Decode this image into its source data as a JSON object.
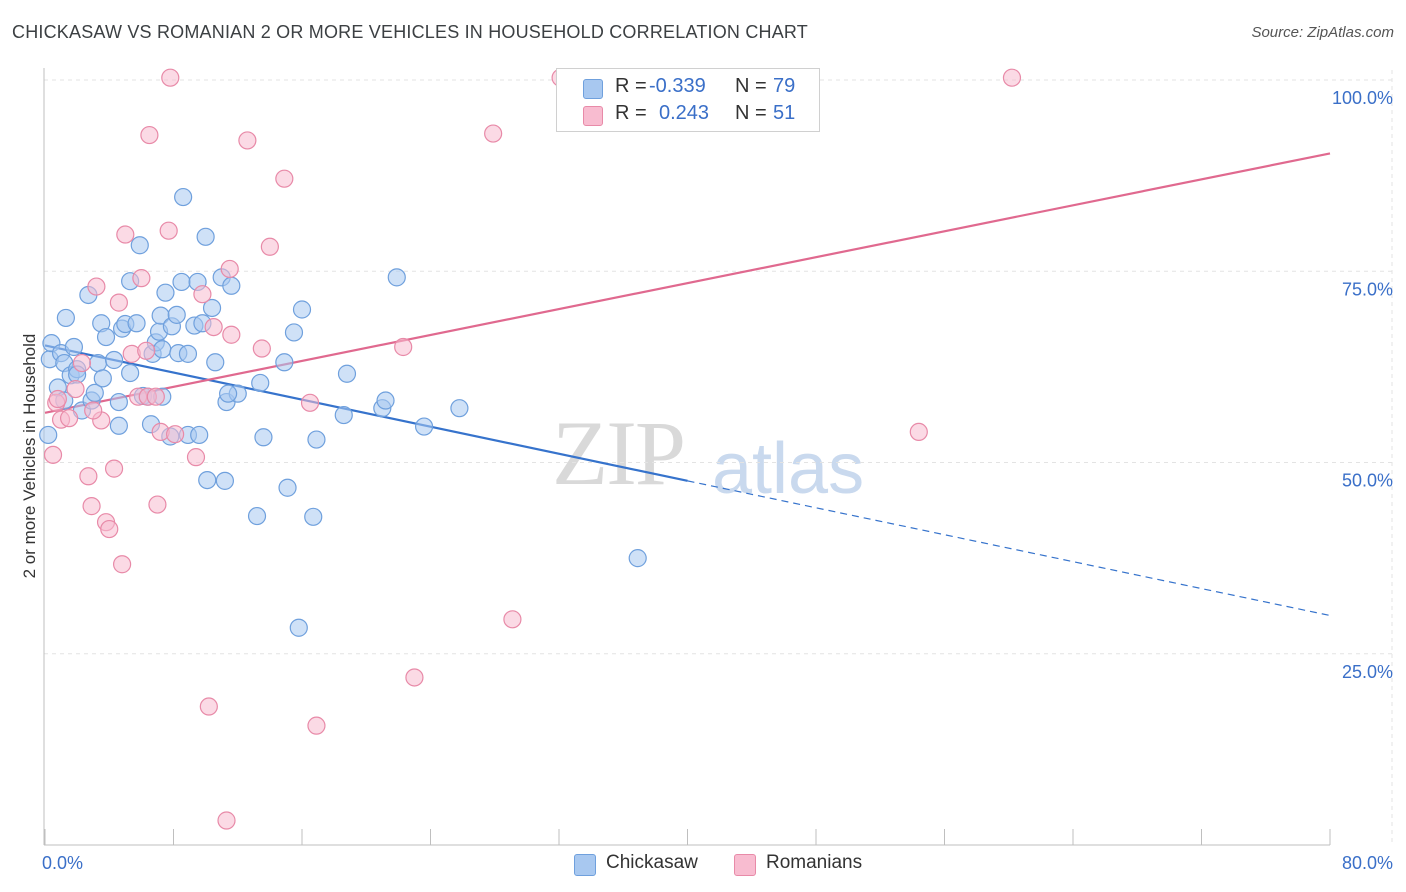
{
  "header": {
    "title": "CHICKASAW VS ROMANIAN 2 OR MORE VEHICLES IN HOUSEHOLD CORRELATION CHART",
    "source": "Source: ZipAtlas.com"
  },
  "watermark": {
    "zip": "ZIP",
    "atlas": "atlas"
  },
  "stats": {
    "row1": {
      "r_label": "R =",
      "r_value": "-0.339",
      "n_label": "N =",
      "n_value": "79"
    },
    "row2": {
      "r_label": "R =",
      "r_value": "0.243",
      "n_label": "N =",
      "n_value": "51"
    }
  },
  "legend": {
    "chickasaw": "Chickasaw",
    "romanians": "Romanians"
  },
  "colors": {
    "chickasaw_fill": "#a8c8f0",
    "chickasaw_stroke": "#6fa0dd",
    "chickasaw_line": "#3673cc",
    "romanian_fill": "#f8bcd0",
    "romanian_stroke": "#e88aa8",
    "romanian_line": "#e0698f",
    "tick_label": "#3a6fc8",
    "grid": "#e3e3e3"
  },
  "chart_data": {
    "type": "scatter",
    "title": "CHICKASAW VS ROMANIAN 2 OR MORE VEHICLES IN HOUSEHOLD CORRELATION CHART",
    "xlabel": "",
    "ylabel": "2 or more Vehicles in Household",
    "xlim": [
      0,
      80
    ],
    "ylim": [
      0,
      100
    ],
    "x_tick_labels": [
      "0.0%",
      "80.0%"
    ],
    "y_ticks": [
      25,
      50,
      75,
      100
    ],
    "y_tick_labels": [
      "25.0%",
      "50.0%",
      "75.0%",
      "100.0%"
    ],
    "grid": true,
    "legend_position": "bottom",
    "series": [
      {
        "name": "Chickasaw",
        "trend": {
          "x0": 0,
          "y0": 65.3,
          "x1": 40,
          "y1": 47.6,
          "dash_to_x": 80,
          "dash_to_y": 30.0
        },
        "points": [
          [
            0.2,
            53.6
          ],
          [
            0.3,
            63.5
          ],
          [
            0.4,
            65.6
          ],
          [
            0.8,
            59.8
          ],
          [
            1.0,
            64.3
          ],
          [
            1.2,
            63.0
          ],
          [
            1.3,
            68.9
          ],
          [
            1.6,
            61.4
          ],
          [
            1.8,
            65.1
          ],
          [
            2.0,
            62.2
          ],
          [
            2.3,
            56.8
          ],
          [
            2.7,
            71.9
          ],
          [
            2.9,
            58.1
          ],
          [
            3.1,
            59.1
          ],
          [
            3.3,
            63.0
          ],
          [
            3.5,
            68.2
          ],
          [
            3.6,
            61.0
          ],
          [
            3.8,
            66.4
          ],
          [
            4.3,
            63.4
          ],
          [
            4.6,
            54.8
          ],
          [
            4.8,
            67.5
          ],
          [
            5.0,
            68.1
          ],
          [
            5.3,
            61.7
          ],
          [
            5.3,
            73.7
          ],
          [
            5.7,
            68.2
          ],
          [
            5.9,
            78.4
          ],
          [
            6.1,
            58.7
          ],
          [
            6.4,
            58.6
          ],
          [
            6.6,
            55.0
          ],
          [
            6.7,
            64.2
          ],
          [
            6.9,
            65.7
          ],
          [
            7.1,
            67.1
          ],
          [
            7.2,
            69.2
          ],
          [
            7.3,
            64.8
          ],
          [
            7.5,
            72.2
          ],
          [
            7.8,
            53.4
          ],
          [
            7.9,
            67.8
          ],
          [
            8.2,
            69.3
          ],
          [
            8.3,
            64.3
          ],
          [
            8.5,
            73.6
          ],
          [
            8.6,
            84.7
          ],
          [
            8.9,
            64.2
          ],
          [
            8.9,
            53.6
          ],
          [
            9.3,
            67.9
          ],
          [
            9.5,
            73.6
          ],
          [
            9.8,
            68.2
          ],
          [
            10.1,
            47.7
          ],
          [
            10.0,
            79.5
          ],
          [
            10.4,
            70.2
          ],
          [
            10.6,
            63.1
          ],
          [
            11.0,
            74.2
          ],
          [
            11.3,
            57.9
          ],
          [
            11.2,
            47.6
          ],
          [
            11.6,
            73.1
          ],
          [
            12.0,
            59.0
          ],
          [
            13.2,
            43.0
          ],
          [
            13.4,
            60.4
          ],
          [
            13.6,
            53.3
          ],
          [
            14.9,
            63.1
          ],
          [
            15.1,
            46.7
          ],
          [
            15.5,
            67.0
          ],
          [
            15.8,
            28.4
          ],
          [
            16.0,
            70.0
          ],
          [
            16.9,
            53.0
          ],
          [
            18.6,
            56.2
          ],
          [
            18.8,
            61.6
          ],
          [
            21.0,
            57.1
          ],
          [
            21.2,
            58.1
          ],
          [
            21.9,
            74.2
          ],
          [
            23.6,
            54.7
          ],
          [
            25.8,
            57.1
          ],
          [
            36.9,
            37.5
          ],
          [
            11.4,
            59.0
          ],
          [
            4.6,
            57.9
          ],
          [
            2.0,
            61.5
          ],
          [
            1.2,
            58.1
          ],
          [
            16.7,
            42.9
          ],
          [
            9.6,
            53.6
          ],
          [
            7.3,
            58.6
          ]
        ]
      },
      {
        "name": "Romanians",
        "trend": {
          "x0": 0,
          "y0": 56.5,
          "x1": 80,
          "y1": 90.4
        },
        "points": [
          [
            0.5,
            51.0
          ],
          [
            0.7,
            57.8
          ],
          [
            0.8,
            58.3
          ],
          [
            1.0,
            55.6
          ],
          [
            1.5,
            55.8
          ],
          [
            1.9,
            59.6
          ],
          [
            2.3,
            63.0
          ],
          [
            2.7,
            48.2
          ],
          [
            2.9,
            44.3
          ],
          [
            3.2,
            73.0
          ],
          [
            3.5,
            55.5
          ],
          [
            3.8,
            42.2
          ],
          [
            4.0,
            41.3
          ],
          [
            4.3,
            49.2
          ],
          [
            4.6,
            70.9
          ],
          [
            4.8,
            36.7
          ],
          [
            5.0,
            79.8
          ],
          [
            5.4,
            64.2
          ],
          [
            5.8,
            58.6
          ],
          [
            6.0,
            74.1
          ],
          [
            6.3,
            64.6
          ],
          [
            6.4,
            58.6
          ],
          [
            6.5,
            92.8
          ],
          [
            6.9,
            58.6
          ],
          [
            7.0,
            44.5
          ],
          [
            7.2,
            54.0
          ],
          [
            7.7,
            80.3
          ],
          [
            7.8,
            100.3
          ],
          [
            8.1,
            53.7
          ],
          [
            9.4,
            50.7
          ],
          [
            9.8,
            72.0
          ],
          [
            10.2,
            18.1
          ],
          [
            10.5,
            67.7
          ],
          [
            11.3,
            3.2
          ],
          [
            11.5,
            75.3
          ],
          [
            11.6,
            66.7
          ],
          [
            12.6,
            92.1
          ],
          [
            13.5,
            64.9
          ],
          [
            14.0,
            78.2
          ],
          [
            14.9,
            87.1
          ],
          [
            16.5,
            57.8
          ],
          [
            16.9,
            15.6
          ],
          [
            22.3,
            65.1
          ],
          [
            23.0,
            21.9
          ],
          [
            27.9,
            93.0
          ],
          [
            29.1,
            29.5
          ],
          [
            32.1,
            100.3
          ],
          [
            37.5,
            100.2
          ],
          [
            54.4,
            54.0
          ],
          [
            60.2,
            100.3
          ],
          [
            3.0,
            56.8
          ]
        ]
      }
    ]
  }
}
